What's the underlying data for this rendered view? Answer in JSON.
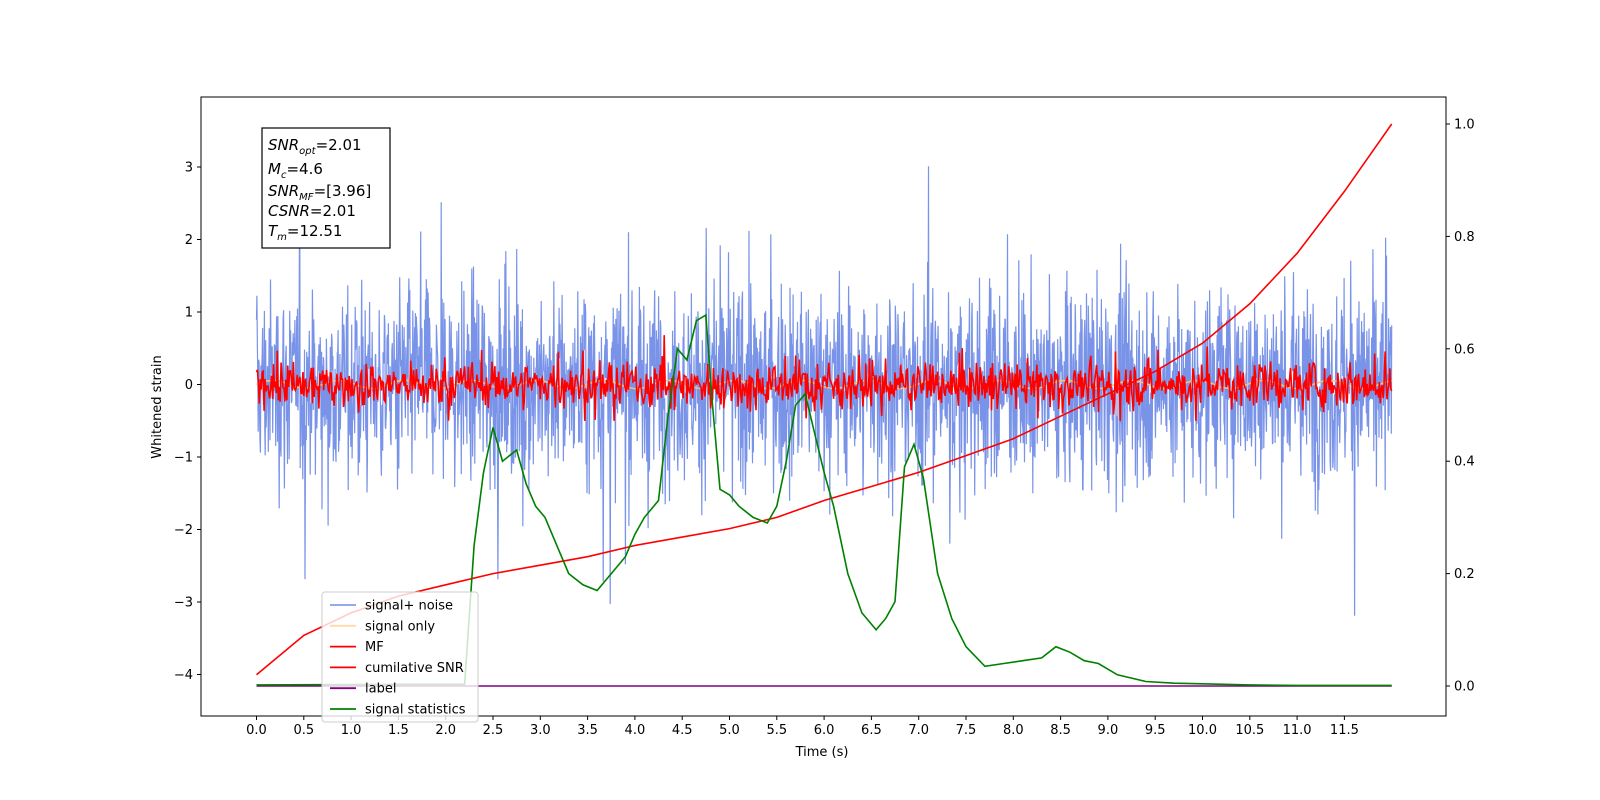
{
  "chart_data": {
    "type": "line",
    "xlabel": "Time (s)",
    "ylabel": "Whitened strain",
    "xlim": [
      -0.6,
      12.5
    ],
    "ylim": [
      -4.55,
      3.75
    ],
    "y2lim": [
      -0.05,
      1.05
    ],
    "x_ticks": [
      "0.0",
      "0.5",
      "1.0",
      "1.5",
      "2.0",
      "2.5",
      "3.0",
      "3.5",
      "4.0",
      "4.5",
      "5.0",
      "5.5",
      "6.0",
      "6.5",
      "7.0",
      "7.5",
      "8.0",
      "8.5",
      "9.0",
      "9.5",
      "10.0",
      "10.5",
      "11.0",
      "11.5"
    ],
    "y_ticks": [
      "3",
      "2",
      "1",
      "0",
      "−1",
      "−2",
      "−3",
      "−4"
    ],
    "y2_ticks": [
      "1.0",
      "0.8",
      "0.6",
      "0.4",
      "0.2",
      "0.0"
    ],
    "legend_position": "lower-left",
    "grid": false,
    "annotation": {
      "snr_opt": {
        "sym": "SNR",
        "sub": "opt",
        "val": "=2.01"
      },
      "mc": {
        "sym": "M",
        "sub": "c",
        "val": "=4.6"
      },
      "snr_mf": {
        "sym": "SNR",
        "sub": "MF",
        "val": "=[3.96]"
      },
      "csnr": {
        "sym": "CSNR",
        "sub": "",
        "val": "=2.01"
      },
      "tm": {
        "sym": "T",
        "sub": "m",
        "val": "=12.51"
      }
    },
    "series": [
      {
        "name": "signal+ noise",
        "color": "#7993e8",
        "axis": "left",
        "description_range": [
          -3.6,
          3.6
        ]
      },
      {
        "name": "signal only",
        "color": "#ffc070",
        "axis": "left"
      },
      {
        "name": "MF",
        "color": "#ff0000",
        "axis": "left",
        "description_range": [
          -0.5,
          0.8
        ]
      },
      {
        "name": "cumilative SNR",
        "color": "#ff0000",
        "axis": "right",
        "points": [
          [
            0.0,
            0.02
          ],
          [
            0.5,
            0.09
          ],
          [
            1.0,
            0.13
          ],
          [
            1.5,
            0.16
          ],
          [
            2.0,
            0.18
          ],
          [
            2.5,
            0.2
          ],
          [
            3.0,
            0.215
          ],
          [
            3.5,
            0.23
          ],
          [
            4.0,
            0.25
          ],
          [
            4.5,
            0.265
          ],
          [
            5.0,
            0.28
          ],
          [
            5.5,
            0.3
          ],
          [
            6.0,
            0.33
          ],
          [
            6.5,
            0.355
          ],
          [
            7.0,
            0.38
          ],
          [
            7.5,
            0.41
          ],
          [
            8.0,
            0.44
          ],
          [
            8.5,
            0.48
          ],
          [
            9.0,
            0.52
          ],
          [
            9.5,
            0.56
          ],
          [
            10.0,
            0.61
          ],
          [
            10.5,
            0.68
          ],
          [
            11.0,
            0.77
          ],
          [
            11.5,
            0.88
          ],
          [
            12.0,
            1.0
          ]
        ]
      },
      {
        "name": "label",
        "color": "#800080",
        "axis": "right",
        "points": [
          [
            0.0,
            0.0
          ],
          [
            12.0,
            0.0
          ]
        ]
      },
      {
        "name": "signal statistics",
        "color": "#008000",
        "axis": "right",
        "points": [
          [
            0.0,
            0.002
          ],
          [
            1.5,
            0.003
          ],
          [
            2.0,
            0.003
          ],
          [
            2.2,
            0.003
          ],
          [
            2.3,
            0.25
          ],
          [
            2.4,
            0.38
          ],
          [
            2.5,
            0.46
          ],
          [
            2.6,
            0.4
          ],
          [
            2.75,
            0.42
          ],
          [
            2.85,
            0.36
          ],
          [
            2.95,
            0.32
          ],
          [
            3.05,
            0.3
          ],
          [
            3.15,
            0.26
          ],
          [
            3.3,
            0.2
          ],
          [
            3.45,
            0.18
          ],
          [
            3.6,
            0.17
          ],
          [
            3.75,
            0.2
          ],
          [
            3.9,
            0.23
          ],
          [
            4.0,
            0.27
          ],
          [
            4.1,
            0.3
          ],
          [
            4.25,
            0.33
          ],
          [
            4.35,
            0.48
          ],
          [
            4.45,
            0.6
          ],
          [
            4.55,
            0.58
          ],
          [
            4.65,
            0.65
          ],
          [
            4.75,
            0.66
          ],
          [
            4.82,
            0.5
          ],
          [
            4.9,
            0.35
          ],
          [
            5.0,
            0.34
          ],
          [
            5.1,
            0.32
          ],
          [
            5.25,
            0.3
          ],
          [
            5.4,
            0.29
          ],
          [
            5.5,
            0.32
          ],
          [
            5.6,
            0.4
          ],
          [
            5.7,
            0.5
          ],
          [
            5.8,
            0.52
          ],
          [
            5.9,
            0.45
          ],
          [
            6.0,
            0.38
          ],
          [
            6.1,
            0.32
          ],
          [
            6.25,
            0.2
          ],
          [
            6.4,
            0.13
          ],
          [
            6.55,
            0.1
          ],
          [
            6.65,
            0.12
          ],
          [
            6.75,
            0.15
          ],
          [
            6.85,
            0.39
          ],
          [
            6.95,
            0.43
          ],
          [
            7.05,
            0.37
          ],
          [
            7.2,
            0.2
          ],
          [
            7.35,
            0.12
          ],
          [
            7.5,
            0.07
          ],
          [
            7.7,
            0.035
          ],
          [
            7.9,
            0.04
          ],
          [
            8.1,
            0.045
          ],
          [
            8.3,
            0.05
          ],
          [
            8.45,
            0.07
          ],
          [
            8.6,
            0.06
          ],
          [
            8.75,
            0.045
          ],
          [
            8.9,
            0.04
          ],
          [
            9.1,
            0.02
          ],
          [
            9.4,
            0.008
          ],
          [
            9.7,
            0.005
          ],
          [
            10.0,
            0.004
          ],
          [
            10.5,
            0.002
          ],
          [
            11.0,
            0.001
          ],
          [
            12.0,
            0.001
          ]
        ]
      }
    ]
  }
}
